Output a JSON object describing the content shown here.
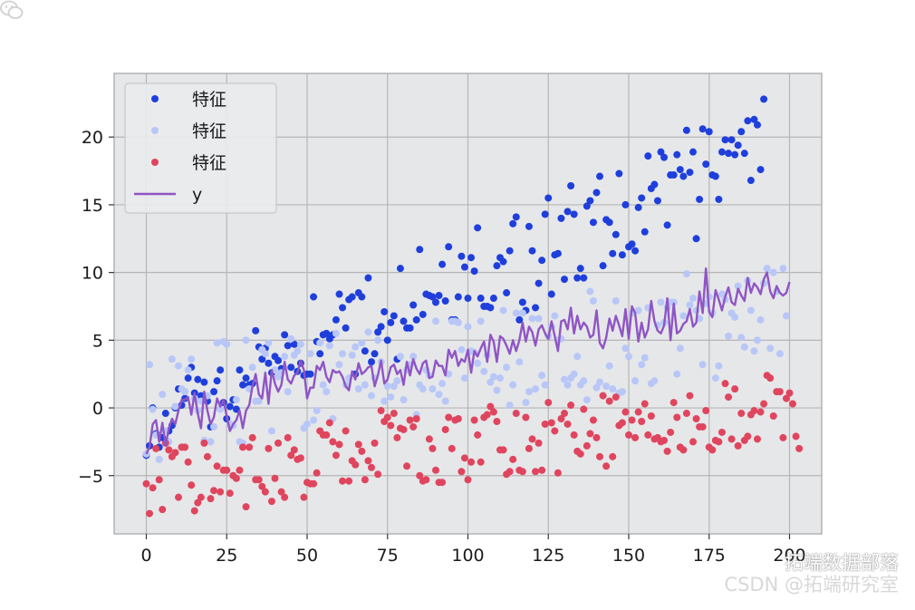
{
  "chart_data": {
    "type": "scatter",
    "xlim": [
      -10,
      210
    ],
    "ylim": [
      -9.3,
      24.7
    ],
    "x_ticks": [
      0,
      25,
      50,
      75,
      100,
      125,
      150,
      175,
      200
    ],
    "y_ticks": [
      -5,
      0,
      5,
      10,
      15,
      20
    ],
    "y_tick_labels": [
      "−5",
      "0",
      "5",
      "10",
      "15",
      "20"
    ],
    "grid": true,
    "legend_position": "top-left",
    "series": [
      {
        "name": "特征",
        "kind": "scatter",
        "color": "#1f3fdc",
        "values": [
          -3.5,
          -2.8,
          0.0,
          -1.9,
          -2.9,
          -2.2,
          -0.4,
          -1.7,
          -1.3,
          0.0,
          1.4,
          0.2,
          0.7,
          2.2,
          3.0,
          1.1,
          2.1,
          0.9,
          1.9,
          0.5,
          -1.4,
          1.2,
          2.0,
          2.8,
          0.4,
          -0.8,
          0.1,
          0.6,
          -0.1,
          2.8,
          1.7,
          2.2,
          1.7,
          1.8,
          5.7,
          4.5,
          3.6,
          4.4,
          3.3,
          2.6,
          3.8,
          3.5,
          2.9,
          5.4,
          4.6,
          3.0,
          4.7,
          2.7,
          3.3,
          2.4,
          2.5,
          2.5,
          8.2,
          4.9,
          4.0,
          5.4,
          5.5,
          5.1,
          5.4,
          6.5,
          8.4,
          7.4,
          5.9,
          8.0,
          8.2,
          2.5,
          8.5,
          8.2,
          4.2,
          9.6,
          3.4,
          4.0,
          5.6,
          6.0,
          7.1,
          5.0,
          6.3,
          6.8,
          3.6,
          10.3,
          6.4,
          5.9,
          5.9,
          7.6,
          6.5,
          11.7,
          6.9,
          8.4,
          8.3,
          8.2,
          7.8,
          8.3,
          10.6,
          7.9,
          11.9,
          6.5,
          6.5,
          8.2,
          11.2,
          10.4,
          8.1,
          11.1,
          10.1,
          13.3,
          8.1,
          7.5,
          7.5,
          7.4,
          8.1,
          10.5,
          11.1,
          10.8,
          8.5,
          11.6,
          13.6,
          14.1,
          6.5,
          7.8,
          7.2,
          13.4,
          11.6,
          7.4,
          9.2,
          10.9,
          14.3,
          15.5,
          8.4,
          11.3,
          11.4,
          14.0,
          9.5,
          14.5,
          16.4,
          14.3,
          9.6,
          10.3,
          9.6,
          14.9,
          15.3,
          13.7,
          15.9,
          17.1,
          10.5,
          13.9,
          13.7,
          11.4,
          12.8,
          17.3,
          11.3,
          15.0,
          11.9,
          12.1,
          11.6,
          14.8,
          15.5,
          13.0,
          18.6,
          16.2,
          16.5,
          15.3,
          18.9,
          18.5,
          13.5,
          17.2,
          17.2,
          18.7,
          17.6,
          17.1,
          20.5,
          17.4,
          18.9,
          12.5,
          15.4,
          20.6,
          18.0,
          20.4,
          17.2,
          17.1,
          15.4,
          18.9,
          19.8,
          18.8,
          19.8,
          18.7,
          19.4,
          20.4,
          18.8,
          21.2,
          16.8,
          21.3,
          20.9,
          17.6,
          22.8
        ]
      },
      {
        "name": "特征",
        "kind": "scatter",
        "color": "#b8c7f7",
        "values": [
          -3.4,
          3.2,
          -0.1,
          -2.0,
          -3.8,
          1.0,
          -1.7,
          -2.5,
          3.6,
          0.1,
          3.1,
          1.4,
          1.2,
          2.8,
          3.6,
          0.7,
          -0.2,
          0.5,
          -2.4,
          0.9,
          -2.5,
          -1.4,
          4.8,
          -0.1,
          4.9,
          4.7,
          -1.2,
          -1.3,
          0.6,
          -2.5,
          -2.6,
          5.0,
          1.4,
          3.0,
          0.5,
          0.5,
          4.3,
          4.0,
          4.8,
          -1.7,
          2.8,
          2.3,
          2.6,
          3.8,
          1.2,
          5.1,
          3.9,
          4.2,
          4.7,
          -1.5,
          -1.2,
          4.0,
          -0.9,
          -0.2,
          4.8,
          1.7,
          1.2,
          4.6,
          -0.8,
          5.5,
          3.2,
          4.0,
          1.7,
          2.2,
          3.9,
          4.5,
          1.4,
          4.8,
          1.7,
          5.6,
          0.9,
          2.2,
          5.0,
          3.4,
          0.5,
          1.6,
          0.8,
          1.6,
          2.0,
          3.8,
          0.6,
          2.8,
          3.2,
          3.8,
          -0.5,
          1.7,
          1.4,
          2.8,
          2.4,
          1.4,
          6.4,
          1.0,
          1.8,
          0.5,
          2.5,
          6.4,
          6.4,
          6.3,
          4.3,
          2.2,
          6.0,
          4.2,
          4.1,
          3.3,
          6.4,
          2.7,
          3.9,
          1.9,
          2.3,
          1.3,
          2.2,
          7.2,
          3.0,
          0.2,
          1.7,
          7.0,
          3.4,
          7.0,
          0.4,
          1.2,
          6.6,
          1.4,
          6.6,
          2.4,
          1.7,
          5.3,
          6.0,
          6.8,
          5.0,
          5.1,
          2.1,
          1.7,
          2.2,
          2.5,
          3.8,
          1.7,
          2.0,
          0.6,
          8.6,
          7.9,
          1.5,
          1.9,
          0.9,
          1.6,
          3.1,
          1.4,
          7.9,
          1.1,
          1.2,
          4.4,
          3.8,
          7.0,
          2.0,
          7.2,
          3.2,
          3.7,
          7.4,
          1.8,
          2.0,
          6.1,
          7.8,
          6.3,
          7.4,
          7.8,
          7.8,
          2.5,
          4.4,
          6.8,
          9.9,
          7.6,
          8.1,
          7.2,
          6.6,
          3.2,
          7.7,
          8.2,
          7.0,
          2.2,
          3.1,
          8.4,
          8.0,
          5.3,
          7.0,
          6.7,
          9.0,
          5.2,
          4.5,
          9.4,
          7.2,
          4.2,
          5.0,
          6.5,
          9.2,
          10.3,
          4.4,
          10.0,
          8.6,
          4.0,
          10.3,
          6.8
        ]
      },
      {
        "name": "特征",
        "kind": "scatter",
        "color": "#e0455e",
        "values": [
          -5.6,
          -7.8,
          -5.9,
          -3.0,
          -5.3,
          -7.5,
          -2.6,
          -3.1,
          -3.6,
          -3.3,
          -6.6,
          -2.9,
          -2.9,
          -4.0,
          -5.7,
          -7.6,
          -7.0,
          -6.6,
          -2.6,
          -3.6,
          -6.7,
          -6.1,
          -4.3,
          -6.2,
          -4.6,
          -4.6,
          -6.3,
          -5.0,
          -5.2,
          -4.6,
          -2.9,
          -7.3,
          -2.9,
          -2.2,
          -5.3,
          -5.3,
          -5.8,
          -6.2,
          -3.0,
          -6.9,
          -5.2,
          -2.6,
          -6.2,
          -6.6,
          -2.2,
          -3.5,
          -3.1,
          -3.8,
          -3.7,
          -6.6,
          -5.5,
          -5.6,
          -5.6,
          -4.8,
          -1.7,
          -2.0,
          -2.0,
          -1.1,
          -2.5,
          -3.5,
          -2.7,
          -5.4,
          -1.7,
          -5.4,
          -3.9,
          -4.2,
          -2.7,
          -3.2,
          -5.3,
          -3.9,
          -4.4,
          -2.6,
          -4.9,
          -0.2,
          -1.0,
          -0.7,
          -1.3,
          -0.4,
          -2.2,
          -1.5,
          -1.6,
          -4.3,
          -0.9,
          -1.4,
          -0.8,
          -5.0,
          -5.4,
          -5.3,
          -2.3,
          -3.0,
          -4.6,
          -5.5,
          -5.5,
          -1.6,
          -0.7,
          -3.0,
          -0.9,
          -0.8,
          -4.7,
          -3.7,
          -5.3,
          -4.0,
          -0.9,
          -2.0,
          -4.0,
          -0.7,
          -0.5,
          0.1,
          -0.3,
          -1.0,
          -3.1,
          -3.1,
          -4.9,
          -4.7,
          -3.8,
          -0.4,
          -4.6,
          -4.7,
          -0.7,
          -3.0,
          -2.3,
          -4.7,
          -2.6,
          -4.6,
          -1.2,
          0.4,
          -1.1,
          -1.7,
          -4.8,
          -0.8,
          -0.4,
          -1.2,
          0.2,
          -2.0,
          -3.2,
          -3.4,
          -0.1,
          -2.8,
          -1.9,
          -0.9,
          -2.2,
          -3.6,
          0.9,
          -4.3,
          0.5,
          -3.6,
          0.8,
          -1.3,
          -1.1,
          -0.3,
          -2.0,
          -0.9,
          -2.2,
          -0.3,
          -1.0,
          0.3,
          -2.0,
          -0.6,
          -2.3,
          -2.2,
          -2.5,
          -2.4,
          -3.2,
          -1.8,
          0.4,
          -0.7,
          -2.9,
          -3.1,
          -0.4,
          0.9,
          -2.5,
          -0.8,
          -1.4,
          -1.4,
          -0.2,
          -2.9,
          -3.1,
          -2.4,
          -2.5,
          -1.8,
          1.8,
          0.8,
          -2.3,
          1.4,
          -2.8,
          -0.4,
          -2.4,
          -2.1,
          -0.5,
          -0.2,
          -2.3,
          -0.3,
          0.3,
          2.4,
          2.2,
          -0.6,
          1.2,
          1.2,
          -2.2,
          0.7,
          1.1,
          0.3,
          -2.1,
          -3.0
        ]
      },
      {
        "name": "y",
        "kind": "line",
        "color": "#8f55c4",
        "values": [
          -3.4,
          -2.9,
          -1.2,
          -0.9,
          -2.5,
          -1.1,
          -2.8,
          -1.5,
          -0.8,
          -1.2,
          -0.2,
          0.6,
          0.6,
          0.8,
          -0.5,
          1.1,
          -0.4,
          -1.5,
          1.2,
          -0.2,
          -1.2,
          -0.7,
          0.7,
          0.1,
          0.6,
          -0.6,
          -1.7,
          -1.2,
          -0.9,
          -0.2,
          -1.5,
          -0.2,
          0.2,
          1.6,
          2.5,
          1.0,
          0.7,
          2.6,
          0.3,
          2.8,
          1.8,
          1.2,
          1.7,
          3.4,
          2.1,
          1.8,
          2.4,
          2.6,
          3.5,
          2.8,
          0.7,
          1.5,
          1.5,
          3.1,
          2.8,
          3.4,
          2.3,
          1.9,
          2.8,
          2.6,
          2.7,
          2.3,
          1.6,
          1.3,
          2.7,
          2.1,
          3.3,
          2.5,
          2.7,
          3.0,
          3.1,
          1.6,
          2.4,
          3.5,
          1.8,
          2.1,
          3.0,
          3.2,
          2.5,
          2.8,
          1.7,
          3.4,
          2.4,
          3.6,
          2.9,
          2.5,
          3.3,
          3.5,
          2.2,
          2.3,
          3.5,
          3.1,
          3.1,
          2.4,
          4.3,
          3.7,
          4.2,
          3.1,
          3.6,
          3.4,
          4.3,
          2.6,
          4.2,
          3.8,
          4.4,
          4.9,
          3.4,
          5.4,
          4.9,
          3.4,
          5.3,
          5.1,
          4.6,
          4.0,
          5.0,
          4.2,
          5.0,
          6.3,
          4.9,
          6.0,
          5.6,
          4.6,
          5.8,
          6.1,
          5.5,
          5.1,
          6.4,
          5.3,
          4.2,
          6.4,
          6.5,
          5.8,
          7.4,
          5.5,
          6.8,
          5.8,
          6.3,
          6.0,
          5.2,
          5.4,
          7.2,
          4.8,
          4.4,
          5.2,
          6.6,
          5.7,
          6.8,
          6.1,
          5.3,
          7.3,
          5.1,
          7.5,
          7.0,
          4.9,
          6.3,
          5.2,
          5.8,
          7.9,
          6.4,
          5.7,
          5.5,
          6.1,
          8.1,
          5.0,
          7.7,
          5.5,
          5.7,
          6.2,
          6.4,
          7.3,
          6.0,
          6.3,
          8.6,
          7.0,
          10.3,
          7.1,
          6.7,
          8.7,
          8.0,
          7.2,
          8.2,
          8.9,
          7.8,
          7.6,
          8.8,
          8.3,
          7.9,
          9.6,
          8.5,
          9.2,
          8.9,
          8.4,
          9.5,
          10.0,
          8.6,
          8.1,
          9.0,
          8.5,
          8.3,
          8.5,
          9.3
        ]
      }
    ]
  },
  "watermark": {
    "line1": "拓端数据部落",
    "line2": "CSDN @拓端研究室"
  }
}
